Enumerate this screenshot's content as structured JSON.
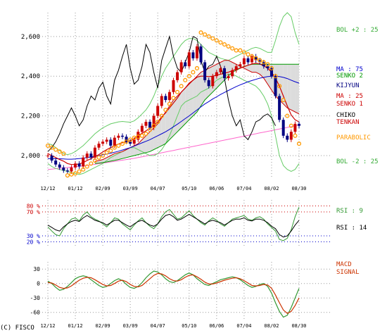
{
  "copyright": "(C) FISCO",
  "colors": {
    "grid": "#999999",
    "candle_up": "#cc0000",
    "candle_down": "#000080",
    "ma75": "#0000cc",
    "ma25": "#cc0000",
    "kijyun": "#000080",
    "tenkan": "#cc0000",
    "chiko": "#000000",
    "senko1": "#cc0000",
    "senko2": "#009900",
    "cloud": "#dcdcdc",
    "parabolic": "#ff9900",
    "bollinger": "#66cc66",
    "long_ma": "#ff66cc",
    "rsi9": "#339933",
    "rsi14": "#000000",
    "macd": "#339933",
    "signal": "#cc3300",
    "overbought": "#cc0000",
    "oversold": "#0000cc"
  },
  "chart_data": [
    {
      "type": "line",
      "panel": "price",
      "x_tick_labels": [
        "12/12",
        "01/12",
        "02/09",
        "03/09",
        "04/07",
        "05/10",
        "06/06",
        "07/04",
        "08/02",
        "08/30"
      ],
      "y_tick_labels": [
        "2,600",
        "2,400",
        "2,200",
        "2,000"
      ],
      "y_ticks": [
        2600,
        2400,
        2200,
        2000
      ],
      "ylim": [
        1890,
        2720
      ],
      "legend": [
        {
          "label": "BOL +2 : 25",
          "color": "#33aa33"
        },
        {
          "label": "MA : 75",
          "color": "#0000cc"
        },
        {
          "label": "SENKO 2",
          "color": "#009900"
        },
        {
          "label": "KIJYUN",
          "color": "#000080"
        },
        {
          "label": "MA : 25",
          "color": "#cc0000"
        },
        {
          "label": "SENKO 1",
          "color": "#cc0000"
        },
        {
          "label": "CHIKO",
          "color": "#000000"
        },
        {
          "label": "TENKAN",
          "color": "#cc0000"
        },
        {
          "label": "PARABOLIC",
          "color": "#ff9900"
        },
        {
          "label": "BOL -2 : 25",
          "color": "#33aa33"
        }
      ],
      "series": {
        "close": [
          2000,
          1975,
          1955,
          1940,
          1925,
          1920,
          1940,
          1960,
          1945,
          1990,
          2010,
          1990,
          2040,
          2060,
          2070,
          2080,
          2050,
          2090,
          2100,
          2095,
          2070,
          2060,
          2080,
          2120,
          2150,
          2170,
          2140,
          2200,
          2250,
          2300,
          2280,
          2320,
          2380,
          2420,
          2470,
          2450,
          2520,
          2490,
          2550,
          2470,
          2380,
          2350,
          2400,
          2420,
          2440,
          2390,
          2400,
          2430,
          2450,
          2460,
          2490,
          2470,
          2500,
          2480,
          2470,
          2450,
          2440,
          2400,
          2300,
          2180,
          2100,
          2080,
          2120,
          2160,
          2150
        ],
        "ma25": [
          2010,
          2000,
          1990,
          1980,
          1972,
          1960,
          1955,
          1955,
          1958,
          1965,
          1975,
          1985,
          1995,
          2005,
          2018,
          2030,
          2040,
          2050,
          2058,
          2065,
          2070,
          2075,
          2085,
          2100,
          2112,
          2125,
          2138,
          2150,
          2170,
          2195,
          2215,
          2240,
          2265,
          2290,
          2320,
          2340,
          2365,
          2380,
          2395,
          2400,
          2400,
          2398,
          2400,
          2405,
          2410,
          2415,
          2420,
          2428,
          2435,
          2440,
          2448,
          2455,
          2462,
          2465,
          2462,
          2452,
          2440,
          2420,
          2390,
          2350,
          2300,
          2250,
          2205,
          2180,
          2170
        ],
        "ma75": [
          1985,
          1985,
          1984,
          1984,
          1983,
          1982,
          1982,
          1983,
          1985,
          1987,
          1990,
          1993,
          1996,
          2000,
          2004,
          2008,
          2012,
          2017,
          2022,
          2028,
          2034,
          2040,
          2048,
          2056,
          2064,
          2072,
          2080,
          2090,
          2100,
          2110,
          2120,
          2132,
          2145,
          2158,
          2172,
          2186,
          2200,
          2215,
          2230,
          2245,
          2260,
          2272,
          2285,
          2296,
          2308,
          2318,
          2328,
          2338,
          2348,
          2356,
          2364,
          2372,
          2378,
          2384,
          2390,
          2394,
          2398,
          2400,
          2400,
          2398,
          2394,
          2388,
          2380,
          2372,
          2365
        ],
        "long_ma": [
          1930,
          1932,
          1934,
          1936,
          1938,
          1940,
          1942,
          1944,
          1946,
          1948,
          1950,
          1953,
          1956,
          1959,
          1962,
          1965,
          1968,
          1971,
          1974,
          1977,
          1980,
          1983,
          1986,
          1990,
          1994,
          1998,
          2002,
          2006,
          2010,
          2014,
          2018,
          2022,
          2026,
          2030,
          2034,
          2038,
          2042,
          2046,
          2050,
          2054,
          2058,
          2062,
          2066,
          2070,
          2074,
          2078,
          2082,
          2086,
          2090,
          2094,
          2098,
          2102,
          2106,
          2110,
          2114,
          2118,
          2122,
          2126,
          2130,
          2134,
          2138,
          2142,
          2146,
          2150,
          2154
        ],
        "bol_upper": [
          2060,
          2055,
          2040,
          2025,
          2010,
          2005,
          2010,
          2020,
          2035,
          2050,
          2070,
          2090,
          2110,
          2125,
          2140,
          2150,
          2160,
          2165,
          2170,
          2172,
          2170,
          2168,
          2175,
          2190,
          2210,
          2230,
          2260,
          2300,
          2350,
          2400,
          2440,
          2470,
          2500,
          2530,
          2560,
          2580,
          2590,
          2590,
          2580,
          2560,
          2540,
          2520,
          2510,
          2500,
          2490,
          2485,
          2480,
          2490,
          2500,
          2510,
          2520,
          2530,
          2540,
          2545,
          2540,
          2530,
          2520,
          2520,
          2580,
          2650,
          2700,
          2720,
          2700,
          2620,
          2560
        ],
        "bol_lower": [
          1960,
          1945,
          1935,
          1930,
          1925,
          1920,
          1915,
          1910,
          1905,
          1910,
          1920,
          1930,
          1940,
          1950,
          1960,
          1975,
          1990,
          2000,
          2010,
          2020,
          2030,
          2040,
          2040,
          2030,
          2020,
          2010,
          2000,
          2000,
          2010,
          2030,
          2060,
          2100,
          2150,
          2200,
          2250,
          2270,
          2280,
          2290,
          2300,
          2320,
          2330,
          2340,
          2360,
          2380,
          2390,
          2400,
          2410,
          2410,
          2400,
          2390,
          2380,
          2370,
          2360,
          2350,
          2330,
          2300,
          2260,
          2200,
          2100,
          2000,
          1950,
          1930,
          1920,
          1930,
          1960
        ],
        "chiko": [
          2020,
          2040,
          2070,
          2110,
          2160,
          2200,
          2240,
          2200,
          2150,
          2180,
          2250,
          2300,
          2280,
          2340,
          2370,
          2300,
          2260,
          2380,
          2430,
          2500,
          2560,
          2440,
          2360,
          2380,
          2450,
          2560,
          2520,
          2420,
          2340,
          2480,
          2540,
          2600,
          2500,
          2440,
          2420,
          2470,
          2520,
          2600,
          2590,
          2480,
          2420,
          2450,
          2460,
          2500,
          2450,
          2390,
          2280,
          2200,
          2150,
          2180,
          2100,
          2080,
          2120,
          2170,
          2180,
          2200,
          2210,
          2190,
          2150,
          null,
          null,
          null,
          null,
          null,
          null
        ],
        "senko1": [
          null,
          null,
          null,
          null,
          null,
          null,
          null,
          null,
          null,
          null,
          null,
          null,
          1970,
          1975,
          1980,
          1990,
          2000,
          2010,
          2015,
          2020,
          2030,
          2040,
          2050,
          2060,
          2080,
          2100,
          2120,
          2140,
          2160,
          2190,
          2220,
          2250,
          2280,
          2300,
          2320,
          2340,
          2360,
          2380,
          2400,
          2420,
          2430,
          2440,
          2450,
          2460,
          2470,
          2480,
          2480,
          2470,
          2460,
          2450,
          2440,
          2430,
          2420,
          2420,
          2410,
          2390,
          2360,
          2330,
          2300,
          2280,
          2260,
          2240,
          2230,
          2220,
          2210
        ],
        "senko2": [
          null,
          null,
          null,
          null,
          null,
          null,
          null,
          null,
          null,
          null,
          null,
          null,
          1960,
          1962,
          1965,
          1968,
          1972,
          1976,
          1980,
          1985,
          1990,
          1995,
          2000,
          2005,
          2010,
          2015,
          2020,
          2030,
          2040,
          2050,
          2060,
          2080,
          2100,
          2120,
          2140,
          2160,
          2180,
          2200,
          2220,
          2250,
          2280,
          2300,
          2320,
          2340,
          2360,
          2380,
          2400,
          2420,
          2430,
          2440,
          2450,
          2455,
          2460,
          2460,
          2460,
          2460,
          2460,
          2460,
          2460,
          2460,
          2460,
          2460,
          2460,
          2460,
          2460
        ],
        "parabolic": [
          2050,
          2040,
          2030,
          2020,
          2010,
          1900,
          1905,
          1910,
          1920,
          1930,
          1945,
          1960,
          1975,
          1990,
          2000,
          2015,
          2025,
          2040,
          2050,
          2060,
          2070,
          2080,
          2090,
          2095,
          2100,
          2110,
          2130,
          2150,
          2170,
          2200,
          2230,
          2260,
          2290,
          2320,
          2350,
          2380,
          2400,
          2420,
          2440,
          2620,
          2610,
          2600,
          2590,
          2580,
          2570,
          2560,
          2550,
          2540,
          2530,
          2530,
          2520,
          2510,
          2500,
          2490,
          2480,
          2470,
          2460,
          2440,
          2400,
          2350,
          2280,
          2200,
          2150,
          2100,
          2060
        ]
      }
    },
    {
      "type": "line",
      "panel": "rsi",
      "y_tick_labels": [
        "80 %",
        "70 %",
        "30 %",
        "20 %"
      ],
      "levels": [
        80,
        70,
        30,
        20
      ],
      "ylim": [
        10,
        90
      ],
      "legend": [
        {
          "label": "RSI : 9",
          "color": "#33aa33"
        },
        {
          "label": "RSI : 14",
          "color": "#000000"
        }
      ],
      "series": {
        "rsi9": [
          45,
          38,
          32,
          30,
          42,
          50,
          58,
          60,
          55,
          65,
          70,
          62,
          58,
          55,
          50,
          45,
          52,
          60,
          58,
          50,
          45,
          40,
          48,
          55,
          60,
          52,
          46,
          42,
          50,
          62,
          70,
          74,
          66,
          58,
          60,
          66,
          72,
          64,
          58,
          52,
          48,
          55,
          60,
          56,
          50,
          46,
          52,
          58,
          60,
          62,
          64,
          58,
          56,
          60,
          62,
          58,
          50,
          44,
          38,
          24,
          22,
          26,
          40,
          62,
          78
        ],
        "rsi14": [
          48,
          44,
          40,
          38,
          45,
          50,
          54,
          56,
          54,
          60,
          64,
          60,
          56,
          54,
          52,
          48,
          52,
          56,
          56,
          52,
          48,
          45,
          50,
          54,
          56,
          52,
          48,
          46,
          50,
          58,
          64,
          66,
          62,
          56,
          58,
          62,
          66,
          62,
          58,
          54,
          50,
          54,
          56,
          54,
          52,
          48,
          52,
          56,
          58,
          58,
          60,
          56,
          55,
          58,
          58,
          56,
          52,
          46,
          42,
          32,
          28,
          30,
          38,
          48,
          56
        ]
      }
    },
    {
      "type": "line",
      "panel": "macd",
      "y_tick_labels": [
        "30",
        "0",
        "-30",
        "-60"
      ],
      "y_ticks": [
        30,
        0,
        -30,
        -60
      ],
      "ylim": [
        -78,
        45
      ],
      "legend": [
        {
          "label": "MACD",
          "color": "#cc0000"
        },
        {
          "label": "SIGNAL",
          "color": "#cc0000"
        }
      ],
      "series": {
        "macd": [
          5,
          0,
          -8,
          -14,
          -12,
          -6,
          2,
          10,
          14,
          16,
          14,
          8,
          2,
          -4,
          -8,
          -6,
          0,
          6,
          10,
          6,
          -2,
          -8,
          -10,
          -6,
          2,
          12,
          20,
          26,
          24,
          18,
          10,
          4,
          2,
          6,
          12,
          18,
          22,
          18,
          10,
          4,
          -2,
          -4,
          0,
          4,
          8,
          10,
          12,
          14,
          12,
          8,
          2,
          -4,
          -8,
          -6,
          -2,
          0,
          -6,
          -20,
          -40,
          -58,
          -70,
          -66,
          -50,
          -30,
          -10
        ],
        "signal": [
          2,
          1,
          -3,
          -8,
          -10,
          -9,
          -5,
          1,
          7,
          11,
          13,
          12,
          8,
          3,
          -2,
          -5,
          -4,
          0,
          5,
          7,
          4,
          -2,
          -6,
          -7,
          -4,
          3,
          10,
          17,
          21,
          20,
          16,
          10,
          6,
          5,
          8,
          13,
          17,
          18,
          14,
          9,
          3,
          -1,
          -1,
          1,
          4,
          7,
          9,
          11,
          12,
          10,
          6,
          1,
          -4,
          -5,
          -4,
          -2,
          -3,
          -10,
          -24,
          -40,
          -55,
          -62,
          -58,
          -46,
          -30
        ]
      }
    }
  ]
}
